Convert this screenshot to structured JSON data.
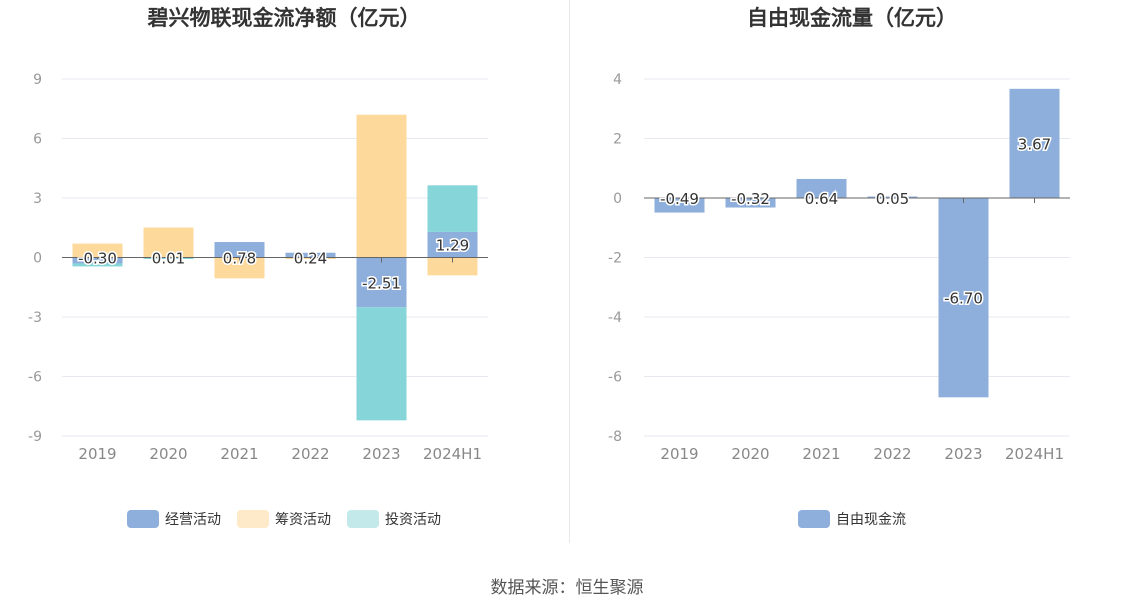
{
  "footer": {
    "source": "数据来源：恒生聚源"
  },
  "chart_data": [
    {
      "type": "bar",
      "stacked": true,
      "title": "碧兴物联现金流净额（亿元）",
      "categories": [
        "2019",
        "2020",
        "2021",
        "2022",
        "2023",
        "2024H1"
      ],
      "yticks": [
        "9",
        "6",
        "3",
        "0",
        "-3",
        "-6",
        "-9"
      ],
      "ylim": [
        -9,
        9
      ],
      "grid": true,
      "legend_position": "bottom",
      "series": [
        {
          "name": "经营活动",
          "color": "#8eaedb",
          "values": [
            -0.3,
            0.01,
            0.78,
            0.24,
            -2.51,
            1.29
          ],
          "labels": [
            "-0.30",
            "0.01",
            "0.78",
            "0.24",
            "-2.51",
            "1.29"
          ]
        },
        {
          "name": "筹资活动",
          "color": "#fdd99b",
          "values": [
            0.7,
            1.5,
            -1.05,
            -0.05,
            7.2,
            -0.9
          ]
        },
        {
          "name": "投资活动",
          "color": "#86d6d9",
          "values": [
            -0.15,
            -0.05,
            0.0,
            0.0,
            -5.7,
            2.35
          ]
        }
      ],
      "legend_colors": [
        "#8eaedb",
        "#fee9c9",
        "#c4e9ea"
      ]
    },
    {
      "type": "bar",
      "title": "自由现金流量（亿元）",
      "categories": [
        "2019",
        "2020",
        "2021",
        "2022",
        "2023",
        "2024H1"
      ],
      "yticks": [
        "4",
        "2",
        "0",
        "-2",
        "-4",
        "-6",
        "-8"
      ],
      "ylim": [
        -8,
        4
      ],
      "grid": true,
      "legend_position": "bottom",
      "series": [
        {
          "name": "自由现金流",
          "color": "#8eaedb",
          "values": [
            -0.49,
            -0.32,
            0.64,
            0.05,
            -6.7,
            3.67
          ],
          "labels": [
            "-0.49",
            "-0.32",
            "0.64",
            "0.05",
            "-6.70",
            "3.67"
          ]
        }
      ],
      "legend_colors": [
        "#8eaedb"
      ]
    }
  ]
}
